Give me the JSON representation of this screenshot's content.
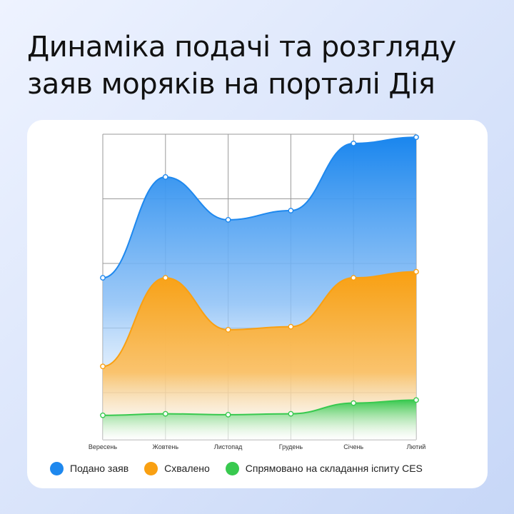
{
  "title": "Динаміка подачі та розгляду заяв моряків на порталі Дія",
  "colors": {
    "blue": "#1e88ee",
    "orange": "#f9a012",
    "green": "#38c94f",
    "grid": "#9a9a9a"
  },
  "chart_data": {
    "type": "area",
    "categories": [
      "Вересень",
      "Жовтень",
      "Листопад",
      "Грудень",
      "Січень",
      "Лютий"
    ],
    "ylim": [
      0,
      100
    ],
    "grid": true,
    "legend_position": "bottom",
    "series": [
      {
        "name": "Подано заяв",
        "color": "#1e88ee",
        "values": [
          53,
          86,
          72,
          75,
          97,
          99
        ]
      },
      {
        "name": "Схвалено",
        "color": "#f9a012",
        "values": [
          24,
          53,
          36,
          37,
          53,
          55
        ]
      },
      {
        "name": "Спрямовано на складання іспиту CES",
        "color": "#38c94f",
        "values": [
          8,
          8.5,
          8.2,
          8.5,
          12,
          13
        ]
      }
    ]
  }
}
